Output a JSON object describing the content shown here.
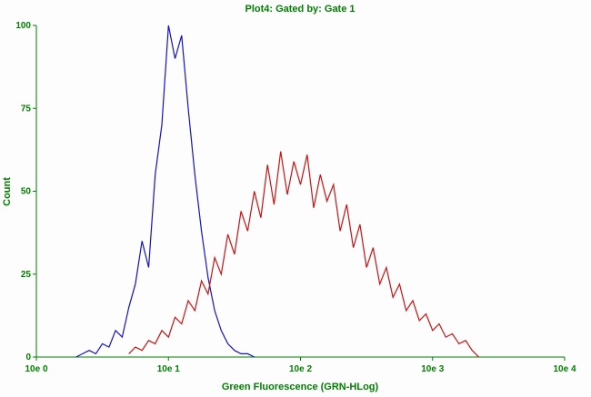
{
  "chart_data": {
    "type": "line",
    "subtype": "flow-cytometry-histogram-overlay",
    "title": "Plot4: Gated by: Gate 1",
    "xlabel": "Green Fluorescence (GRN-HLog)",
    "ylabel": "Count",
    "x_scale": "log10",
    "x_unit": "log10 of GRN-HLog fluorescence",
    "x_range": [
      0,
      4
    ],
    "y_range": [
      0,
      100
    ],
    "grid": false,
    "legend": "none",
    "x_ticks": [
      {
        "v": 0,
        "label": "10e 0"
      },
      {
        "v": 1,
        "label": "10e 1"
      },
      {
        "v": 2,
        "label": "10e 2"
      },
      {
        "v": 3,
        "label": "10e 3"
      },
      {
        "v": 4,
        "label": "10e 4"
      }
    ],
    "y_ticks": [
      {
        "v": 0,
        "label": "0"
      },
      {
        "v": 25,
        "label": "25"
      },
      {
        "v": 50,
        "label": "50"
      },
      {
        "v": 75,
        "label": "75"
      },
      {
        "v": 100,
        "label": "100"
      }
    ],
    "colors": {
      "axis": "#008000",
      "text": "#008000",
      "background": "#fdfdfd",
      "blue_series": "#1212cc",
      "red_series": "#cc1212"
    },
    "series": [
      {
        "name": "blue",
        "color": "#1212cc",
        "peak_x": 1.0,
        "peak_y": 100,
        "x": [
          0.3,
          0.35,
          0.4,
          0.45,
          0.5,
          0.55,
          0.6,
          0.65,
          0.7,
          0.75,
          0.8,
          0.85,
          0.9,
          0.95,
          1.0,
          1.05,
          1.1,
          1.15,
          1.2,
          1.25,
          1.3,
          1.35,
          1.4,
          1.45,
          1.5,
          1.55,
          1.6,
          1.65
        ],
        "y": [
          0,
          1,
          2,
          1,
          4,
          3,
          8,
          6,
          15,
          22,
          35,
          27,
          55,
          70,
          100,
          90,
          97,
          75,
          55,
          38,
          24,
          14,
          8,
          4,
          2,
          1,
          1,
          0
        ]
      },
      {
        "name": "red",
        "color": "#cc1212",
        "peak_x": 1.85,
        "peak_y": 62,
        "x": [
          0.7,
          0.75,
          0.8,
          0.85,
          0.9,
          0.95,
          1.0,
          1.05,
          1.1,
          1.15,
          1.2,
          1.25,
          1.3,
          1.35,
          1.4,
          1.45,
          1.5,
          1.55,
          1.6,
          1.65,
          1.7,
          1.75,
          1.8,
          1.85,
          1.9,
          1.95,
          2.0,
          2.05,
          2.1,
          2.15,
          2.2,
          2.25,
          2.3,
          2.35,
          2.4,
          2.45,
          2.5,
          2.55,
          2.6,
          2.65,
          2.7,
          2.75,
          2.8,
          2.85,
          2.9,
          2.95,
          3.0,
          3.05,
          3.1,
          3.15,
          3.2,
          3.25,
          3.3,
          3.35
        ],
        "y": [
          1,
          3,
          2,
          5,
          4,
          8,
          6,
          12,
          10,
          17,
          14,
          23,
          19,
          30,
          25,
          37,
          31,
          44,
          38,
          50,
          42,
          58,
          46,
          62,
          49,
          59,
          52,
          61,
          45,
          55,
          47,
          52,
          38,
          46,
          33,
          40,
          27,
          33,
          22,
          27,
          18,
          22,
          14,
          17,
          11,
          13,
          8,
          10,
          6,
          7,
          4,
          5,
          2,
          0
        ]
      }
    ]
  }
}
